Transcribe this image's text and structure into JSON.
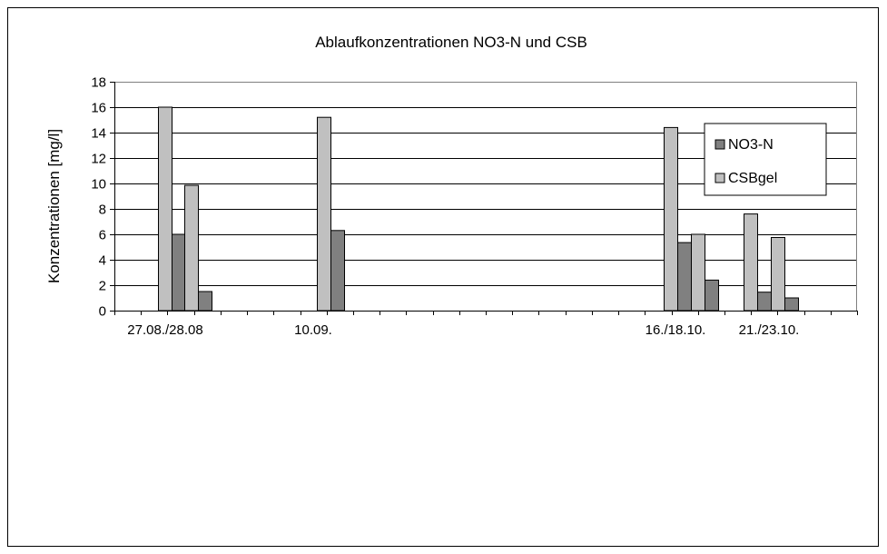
{
  "chart_data": {
    "type": "bar",
    "title": "Ablaufkonzentrationen NO3-N und CSB",
    "xlabel": "",
    "ylabel": "Konzentrationen [mg/l]",
    "ylim": [
      0,
      18
    ],
    "yticks": [
      0,
      2,
      4,
      6,
      8,
      10,
      12,
      14,
      16,
      18
    ],
    "x_tick_labels": [
      "27.08./28.08",
      "10.09.",
      "16./18.10.",
      "21./23.10."
    ],
    "grid": true,
    "legend_position": "top-right",
    "series": [
      {
        "name": "NO3-N",
        "color": "#808080"
      },
      {
        "name": "CSBgel",
        "color": "#c0c0c0"
      }
    ],
    "bars": [
      {
        "series": "CSBgel",
        "value": 16.0
      },
      {
        "series": "NO3-N",
        "value": 6.0
      },
      {
        "series": "CSBgel",
        "value": 9.85
      },
      {
        "series": "NO3-N",
        "value": 1.5
      },
      {
        "series": "CSBgel",
        "value": 15.2
      },
      {
        "series": "NO3-N",
        "value": 6.3
      },
      {
        "series": "CSBgel",
        "value": 14.4
      },
      {
        "series": "NO3-N",
        "value": 5.35
      },
      {
        "series": "CSBgel",
        "value": 6.0
      },
      {
        "series": "NO3-N",
        "value": 2.4
      },
      {
        "series": "CSBgel",
        "value": 7.6
      },
      {
        "series": "NO3-N",
        "value": 1.45
      },
      {
        "series": "CSBgel",
        "value": 5.75
      },
      {
        "series": "NO3-N",
        "value": 1.0
      }
    ]
  }
}
